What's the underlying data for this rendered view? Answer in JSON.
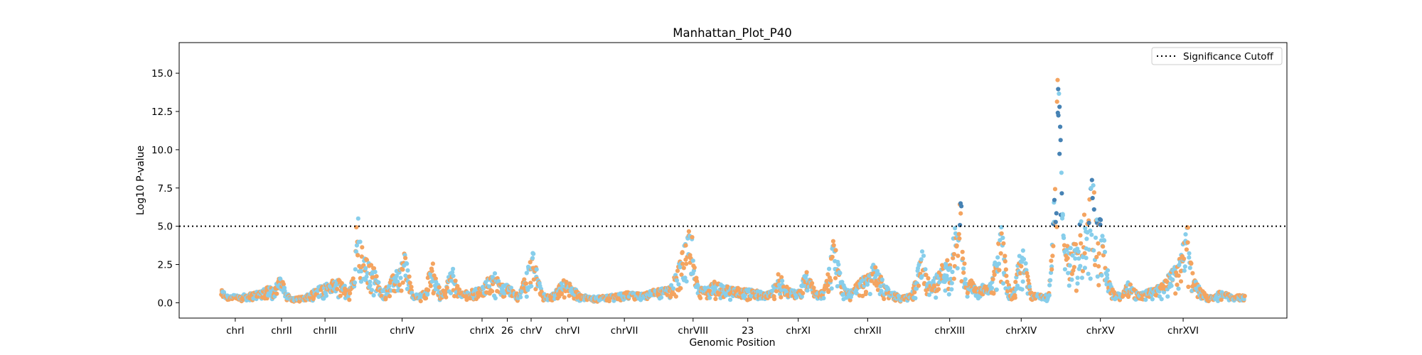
{
  "chart_data": {
    "type": "scatter",
    "title": "Manhattan_Plot_P40",
    "xlabel": "Genomic Position",
    "ylabel": "Log10 P-value",
    "ylim": [
      -1.0,
      17.0
    ],
    "yticks": [
      0.0,
      2.5,
      5.0,
      7.5,
      10.0,
      12.5,
      15.0
    ],
    "ytick_labels": [
      "0.0",
      "2.5",
      "5.0",
      "7.5",
      "10.0",
      "12.5",
      "15.0"
    ],
    "xlim": [
      0,
      1580
    ],
    "xticks": [
      {
        "label": "chrI",
        "x": 80
      },
      {
        "label": "chrII",
        "x": 146
      },
      {
        "label": "chrIII",
        "x": 208
      },
      {
        "label": "chrIV",
        "x": 318
      },
      {
        "label": "chrIX",
        "x": 432
      },
      {
        "label": "26",
        "x": 468
      },
      {
        "label": "chrV",
        "x": 502
      },
      {
        "label": "chrVI",
        "x": 554
      },
      {
        "label": "chrVII",
        "x": 635
      },
      {
        "label": "chrVIII",
        "x": 733
      },
      {
        "label": "23",
        "x": 811
      },
      {
        "label": "chrXI",
        "x": 883
      },
      {
        "label": "chrXII",
        "x": 982
      },
      {
        "label": "chrXIII",
        "x": 1099
      },
      {
        "label": "chrXIV",
        "x": 1201
      },
      {
        "label": "chrXV",
        "x": 1314
      },
      {
        "label": "chrXVI",
        "x": 1432
      }
    ],
    "significance_cutoff": 5.0,
    "legend": {
      "position": "top-right",
      "entries": [
        "Significance Cutoff"
      ]
    },
    "colors": {
      "light_blue": "#87ceeb",
      "orange": "#f4a460",
      "significant": "#4682b4",
      "cutoff": "#000000"
    },
    "profile": [
      [
        60,
        0.9
      ],
      [
        70,
        0.5
      ],
      [
        85,
        0.5
      ],
      [
        100,
        0.6
      ],
      [
        115,
        0.8
      ],
      [
        125,
        1.1
      ],
      [
        135,
        1.0
      ],
      [
        145,
        1.8
      ],
      [
        152,
        0.8
      ],
      [
        160,
        0.3
      ],
      [
        175,
        0.4
      ],
      [
        185,
        0.6
      ],
      [
        195,
        1.0
      ],
      [
        205,
        1.2
      ],
      [
        215,
        1.4
      ],
      [
        225,
        1.6
      ],
      [
        235,
        1.2
      ],
      [
        242,
        0.8
      ],
      [
        250,
        2.0
      ],
      [
        253,
        5.5
      ],
      [
        256,
        6.0
      ],
      [
        259,
        4.0
      ],
      [
        265,
        3.0
      ],
      [
        272,
        2.6
      ],
      [
        278,
        2.3
      ],
      [
        283,
        1.6
      ],
      [
        288,
        0.8
      ],
      [
        295,
        1.0
      ],
      [
        305,
        1.8
      ],
      [
        315,
        2.4
      ],
      [
        322,
        3.5
      ],
      [
        327,
        2.2
      ],
      [
        333,
        0.5
      ],
      [
        345,
        0.6
      ],
      [
        352,
        1.0
      ],
      [
        357,
        2.2
      ],
      [
        362,
        2.6
      ],
      [
        368,
        1.3
      ],
      [
        375,
        0.7
      ],
      [
        382,
        1.4
      ],
      [
        390,
        2.5
      ],
      [
        396,
        1.2
      ],
      [
        402,
        0.7
      ],
      [
        415,
        0.8
      ],
      [
        430,
        1.0
      ],
      [
        440,
        1.6
      ],
      [
        450,
        2.0
      ],
      [
        458,
        1.2
      ],
      [
        466,
        1.2
      ],
      [
        475,
        1.0
      ],
      [
        485,
        0.5
      ],
      [
        495,
        2.0
      ],
      [
        500,
        2.6
      ],
      [
        505,
        3.5
      ],
      [
        512,
        1.6
      ],
      [
        518,
        0.6
      ],
      [
        530,
        0.5
      ],
      [
        540,
        1.0
      ],
      [
        548,
        1.5
      ],
      [
        556,
        1.3
      ],
      [
        565,
        0.9
      ],
      [
        575,
        0.5
      ],
      [
        595,
        0.4
      ],
      [
        615,
        0.5
      ],
      [
        640,
        0.7
      ],
      [
        660,
        0.6
      ],
      [
        680,
        0.9
      ],
      [
        700,
        1.0
      ],
      [
        712,
        2.5
      ],
      [
        722,
        4.0
      ],
      [
        730,
        5.4
      ],
      [
        736,
        2.0
      ],
      [
        742,
        1.0
      ],
      [
        755,
        1.0
      ],
      [
        765,
        1.5
      ],
      [
        775,
        1.2
      ],
      [
        790,
        1.0
      ],
      [
        810,
        0.9
      ],
      [
        825,
        0.8
      ],
      [
        835,
        0.6
      ],
      [
        845,
        0.8
      ],
      [
        855,
        2.0
      ],
      [
        865,
        1.2
      ],
      [
        875,
        0.8
      ],
      [
        885,
        1.0
      ],
      [
        895,
        2.2
      ],
      [
        905,
        1.0
      ],
      [
        912,
        0.6
      ],
      [
        920,
        1.0
      ],
      [
        928,
        2.5
      ],
      [
        932,
        4.2
      ],
      [
        938,
        3.5
      ],
      [
        944,
        1.5
      ],
      [
        952,
        0.8
      ],
      [
        962,
        1.0
      ],
      [
        972,
        1.6
      ],
      [
        982,
        1.8
      ],
      [
        990,
        2.5
      ],
      [
        998,
        2.0
      ],
      [
        1006,
        1.2
      ],
      [
        1015,
        0.8
      ],
      [
        1030,
        0.4
      ],
      [
        1045,
        0.6
      ],
      [
        1055,
        2.5
      ],
      [
        1060,
        4.0
      ],
      [
        1065,
        2.0
      ],
      [
        1072,
        1.2
      ],
      [
        1080,
        1.8
      ],
      [
        1090,
        2.6
      ],
      [
        1100,
        3.0
      ],
      [
        1106,
        5.2
      ],
      [
        1110,
        4.0
      ],
      [
        1114,
        8.2
      ],
      [
        1118,
        3.5
      ],
      [
        1124,
        1.2
      ],
      [
        1130,
        1.5
      ],
      [
        1138,
        0.8
      ],
      [
        1146,
        1.2
      ],
      [
        1152,
        1.0
      ],
      [
        1160,
        1.6
      ],
      [
        1168,
        4.0
      ],
      [
        1173,
        5.2
      ],
      [
        1178,
        3.0
      ],
      [
        1184,
        1.0
      ],
      [
        1190,
        0.6
      ],
      [
        1195,
        2.5
      ],
      [
        1200,
        4.2
      ],
      [
        1206,
        3.0
      ],
      [
        1214,
        0.8
      ],
      [
        1222,
        0.6
      ],
      [
        1232,
        0.5
      ],
      [
        1240,
        0.6
      ],
      [
        1246,
        4.5
      ],
      [
        1250,
        10.0
      ],
      [
        1254,
        16.5
      ],
      [
        1258,
        10.0
      ],
      [
        1262,
        4.0
      ],
      [
        1270,
        4.0
      ],
      [
        1280,
        5.0
      ],
      [
        1290,
        5.8
      ],
      [
        1297,
        6.5
      ],
      [
        1302,
        8.5
      ],
      [
        1308,
        6.5
      ],
      [
        1314,
        6.0
      ],
      [
        1320,
        4.0
      ],
      [
        1326,
        1.5
      ],
      [
        1334,
        0.7
      ],
      [
        1345,
        0.6
      ],
      [
        1355,
        1.5
      ],
      [
        1362,
        0.9
      ],
      [
        1370,
        0.6
      ],
      [
        1380,
        0.8
      ],
      [
        1390,
        1.0
      ],
      [
        1400,
        1.2
      ],
      [
        1410,
        1.8
      ],
      [
        1420,
        2.4
      ],
      [
        1428,
        3.0
      ],
      [
        1434,
        4.5
      ],
      [
        1438,
        5.6
      ],
      [
        1442,
        3.0
      ],
      [
        1448,
        1.5
      ],
      [
        1456,
        1.0
      ],
      [
        1465,
        0.5
      ],
      [
        1475,
        0.4
      ],
      [
        1485,
        0.8
      ],
      [
        1495,
        0.6
      ],
      [
        1505,
        0.4
      ],
      [
        1515,
        0.6
      ],
      [
        1520,
        0.5
      ]
    ]
  }
}
